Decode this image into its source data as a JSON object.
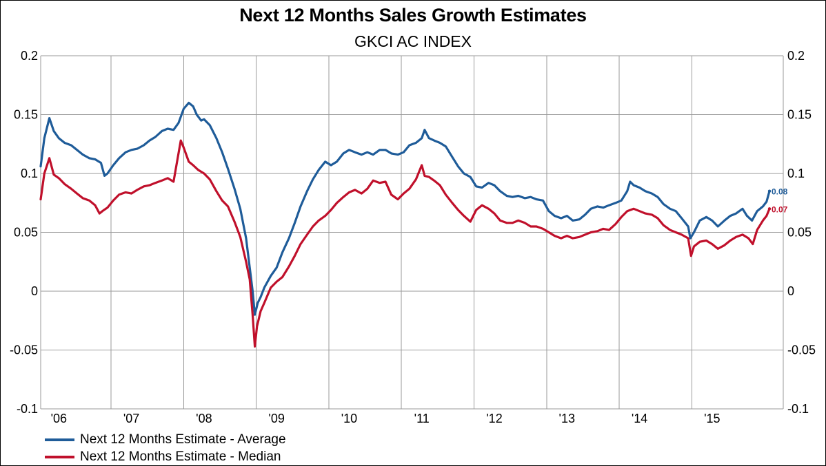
{
  "chart_data": {
    "type": "line",
    "title": "Next 12 Months Sales Growth Estimates",
    "subtitle": "GKCI AC INDEX",
    "xlabel": "",
    "ylabel": "",
    "ylim": [
      -0.1,
      0.2
    ],
    "y_ticks": [
      {
        "value": 0.2,
        "label": "0.2"
      },
      {
        "value": 0.15,
        "label": "0.15"
      },
      {
        "value": 0.1,
        "label": "0.1"
      },
      {
        "value": 0.05,
        "label": "0.05"
      },
      {
        "value": 0,
        "label": "0"
      },
      {
        "value": -0.05,
        "label": "-0.05"
      },
      {
        "value": -0.1,
        "label": "-0.1"
      }
    ],
    "xlim": [
      2005.75,
      2015.98
    ],
    "x_ticks": [
      {
        "value": 2006,
        "label": "'06"
      },
      {
        "value": 2007,
        "label": "'07"
      },
      {
        "value": 2008,
        "label": "'08"
      },
      {
        "value": 2009,
        "label": "'09"
      },
      {
        "value": 2010,
        "label": "'10"
      },
      {
        "value": 2011,
        "label": "'11"
      },
      {
        "value": 2012,
        "label": "'12"
      },
      {
        "value": 2013,
        "label": "'13"
      },
      {
        "value": 2014,
        "label": "'14"
      },
      {
        "value": 2015,
        "label": "'15"
      }
    ],
    "grid": true,
    "dual_y_axis": true,
    "legend_position": "bottom-left",
    "series": [
      {
        "name": "Next 12 Months Estimate - Average",
        "color": "#1f5c99",
        "last_label": "0.08",
        "points": [
          [
            2005.75,
            0.106
          ],
          [
            2005.8,
            0.13
          ],
          [
            2005.87,
            0.147
          ],
          [
            2005.93,
            0.136
          ],
          [
            2006.0,
            0.13
          ],
          [
            2006.08,
            0.126
          ],
          [
            2006.17,
            0.124
          ],
          [
            2006.25,
            0.12
          ],
          [
            2006.33,
            0.116
          ],
          [
            2006.42,
            0.113
          ],
          [
            2006.5,
            0.112
          ],
          [
            2006.58,
            0.109
          ],
          [
            2006.63,
            0.098
          ],
          [
            2006.67,
            0.1
          ],
          [
            2006.75,
            0.107
          ],
          [
            2006.83,
            0.113
          ],
          [
            2006.92,
            0.118
          ],
          [
            2007.0,
            0.12
          ],
          [
            2007.08,
            0.121
          ],
          [
            2007.17,
            0.124
          ],
          [
            2007.25,
            0.128
          ],
          [
            2007.33,
            0.131
          ],
          [
            2007.42,
            0.136
          ],
          [
            2007.5,
            0.138
          ],
          [
            2007.58,
            0.137
          ],
          [
            2007.65,
            0.143
          ],
          [
            2007.72,
            0.155
          ],
          [
            2007.79,
            0.16
          ],
          [
            2007.85,
            0.157
          ],
          [
            2007.9,
            0.15
          ],
          [
            2007.96,
            0.145
          ],
          [
            2008.0,
            0.146
          ],
          [
            2008.08,
            0.141
          ],
          [
            2008.17,
            0.13
          ],
          [
            2008.25,
            0.118
          ],
          [
            2008.33,
            0.104
          ],
          [
            2008.42,
            0.087
          ],
          [
            2008.5,
            0.07
          ],
          [
            2008.58,
            0.045
          ],
          [
            2008.63,
            0.02
          ],
          [
            2008.67,
            0.0
          ],
          [
            2008.7,
            -0.02
          ],
          [
            2008.74,
            -0.01
          ],
          [
            2008.78,
            -0.005
          ],
          [
            2008.83,
            0.003
          ],
          [
            2008.92,
            0.013
          ],
          [
            2009.0,
            0.02
          ],
          [
            2009.08,
            0.033
          ],
          [
            2009.17,
            0.045
          ],
          [
            2009.25,
            0.058
          ],
          [
            2009.33,
            0.072
          ],
          [
            2009.42,
            0.085
          ],
          [
            2009.5,
            0.095
          ],
          [
            2009.58,
            0.103
          ],
          [
            2009.67,
            0.11
          ],
          [
            2009.75,
            0.107
          ],
          [
            2009.83,
            0.11
          ],
          [
            2009.92,
            0.117
          ],
          [
            2010.0,
            0.12
          ],
          [
            2010.08,
            0.118
          ],
          [
            2010.17,
            0.116
          ],
          [
            2010.25,
            0.118
          ],
          [
            2010.33,
            0.116
          ],
          [
            2010.42,
            0.12
          ],
          [
            2010.5,
            0.12
          ],
          [
            2010.58,
            0.117
          ],
          [
            2010.67,
            0.116
          ],
          [
            2010.75,
            0.118
          ],
          [
            2010.83,
            0.124
          ],
          [
            2010.92,
            0.126
          ],
          [
            2011.0,
            0.13
          ],
          [
            2011.04,
            0.137
          ],
          [
            2011.1,
            0.13
          ],
          [
            2011.17,
            0.128
          ],
          [
            2011.25,
            0.126
          ],
          [
            2011.33,
            0.123
          ],
          [
            2011.42,
            0.114
          ],
          [
            2011.5,
            0.106
          ],
          [
            2011.58,
            0.1
          ],
          [
            2011.67,
            0.097
          ],
          [
            2011.75,
            0.089
          ],
          [
            2011.83,
            0.088
          ],
          [
            2011.92,
            0.092
          ],
          [
            2012.0,
            0.09
          ],
          [
            2012.08,
            0.085
          ],
          [
            2012.17,
            0.081
          ],
          [
            2012.25,
            0.08
          ],
          [
            2012.33,
            0.081
          ],
          [
            2012.42,
            0.079
          ],
          [
            2012.5,
            0.08
          ],
          [
            2012.58,
            0.078
          ],
          [
            2012.67,
            0.077
          ],
          [
            2012.75,
            0.068
          ],
          [
            2012.83,
            0.064
          ],
          [
            2012.92,
            0.062
          ],
          [
            2013.0,
            0.064
          ],
          [
            2013.08,
            0.06
          ],
          [
            2013.17,
            0.061
          ],
          [
            2013.25,
            0.065
          ],
          [
            2013.33,
            0.07
          ],
          [
            2013.42,
            0.072
          ],
          [
            2013.5,
            0.071
          ],
          [
            2013.58,
            0.073
          ],
          [
            2013.67,
            0.075
          ],
          [
            2013.75,
            0.077
          ],
          [
            2013.83,
            0.085
          ],
          [
            2013.87,
            0.093
          ],
          [
            2013.92,
            0.09
          ],
          [
            2014.0,
            0.088
          ],
          [
            2014.08,
            0.085
          ],
          [
            2014.17,
            0.083
          ],
          [
            2014.25,
            0.08
          ],
          [
            2014.33,
            0.074
          ],
          [
            2014.42,
            0.07
          ],
          [
            2014.5,
            0.068
          ],
          [
            2014.58,
            0.062
          ],
          [
            2014.67,
            0.055
          ],
          [
            2014.7,
            0.045
          ],
          [
            2014.75,
            0.05
          ],
          [
            2014.83,
            0.06
          ],
          [
            2014.92,
            0.063
          ],
          [
            2015.0,
            0.06
          ],
          [
            2015.08,
            0.055
          ],
          [
            2015.17,
            0.06
          ],
          [
            2015.25,
            0.064
          ],
          [
            2015.33,
            0.066
          ],
          [
            2015.42,
            0.07
          ],
          [
            2015.48,
            0.064
          ],
          [
            2015.55,
            0.06
          ],
          [
            2015.62,
            0.068
          ],
          [
            2015.7,
            0.072
          ],
          [
            2015.75,
            0.076
          ],
          [
            2015.79,
            0.085
          ]
        ]
      },
      {
        "name": "Next 12 Months Estimate - Median",
        "color": "#c0102b",
        "last_label": "0.07",
        "points": [
          [
            2005.75,
            0.078
          ],
          [
            2005.8,
            0.1
          ],
          [
            2005.87,
            0.113
          ],
          [
            2005.93,
            0.099
          ],
          [
            2006.0,
            0.096
          ],
          [
            2006.08,
            0.091
          ],
          [
            2006.17,
            0.087
          ],
          [
            2006.25,
            0.083
          ],
          [
            2006.33,
            0.079
          ],
          [
            2006.42,
            0.077
          ],
          [
            2006.5,
            0.073
          ],
          [
            2006.56,
            0.066
          ],
          [
            2006.6,
            0.068
          ],
          [
            2006.67,
            0.071
          ],
          [
            2006.75,
            0.077
          ],
          [
            2006.83,
            0.082
          ],
          [
            2006.92,
            0.084
          ],
          [
            2007.0,
            0.083
          ],
          [
            2007.08,
            0.086
          ],
          [
            2007.17,
            0.089
          ],
          [
            2007.25,
            0.09
          ],
          [
            2007.33,
            0.092
          ],
          [
            2007.42,
            0.094
          ],
          [
            2007.5,
            0.096
          ],
          [
            2007.58,
            0.093
          ],
          [
            2007.62,
            0.107
          ],
          [
            2007.68,
            0.128
          ],
          [
            2007.72,
            0.122
          ],
          [
            2007.79,
            0.11
          ],
          [
            2007.85,
            0.107
          ],
          [
            2007.92,
            0.103
          ],
          [
            2008.0,
            0.1
          ],
          [
            2008.08,
            0.095
          ],
          [
            2008.17,
            0.085
          ],
          [
            2008.25,
            0.077
          ],
          [
            2008.33,
            0.072
          ],
          [
            2008.42,
            0.059
          ],
          [
            2008.5,
            0.046
          ],
          [
            2008.58,
            0.025
          ],
          [
            2008.63,
            0.01
          ],
          [
            2008.67,
            -0.02
          ],
          [
            2008.7,
            -0.047
          ],
          [
            2008.73,
            -0.03
          ],
          [
            2008.78,
            -0.017
          ],
          [
            2008.83,
            -0.01
          ],
          [
            2008.92,
            0.003
          ],
          [
            2009.0,
            0.008
          ],
          [
            2009.08,
            0.012
          ],
          [
            2009.17,
            0.021
          ],
          [
            2009.25,
            0.03
          ],
          [
            2009.33,
            0.04
          ],
          [
            2009.42,
            0.048
          ],
          [
            2009.5,
            0.055
          ],
          [
            2009.58,
            0.06
          ],
          [
            2009.67,
            0.064
          ],
          [
            2009.75,
            0.069
          ],
          [
            2009.83,
            0.075
          ],
          [
            2009.92,
            0.08
          ],
          [
            2010.0,
            0.084
          ],
          [
            2010.08,
            0.086
          ],
          [
            2010.17,
            0.083
          ],
          [
            2010.25,
            0.087
          ],
          [
            2010.33,
            0.094
          ],
          [
            2010.42,
            0.092
          ],
          [
            2010.5,
            0.093
          ],
          [
            2010.58,
            0.082
          ],
          [
            2010.67,
            0.078
          ],
          [
            2010.75,
            0.083
          ],
          [
            2010.83,
            0.087
          ],
          [
            2010.92,
            0.095
          ],
          [
            2011.0,
            0.107
          ],
          [
            2011.04,
            0.098
          ],
          [
            2011.1,
            0.097
          ],
          [
            2011.17,
            0.094
          ],
          [
            2011.25,
            0.09
          ],
          [
            2011.33,
            0.082
          ],
          [
            2011.42,
            0.075
          ],
          [
            2011.5,
            0.069
          ],
          [
            2011.58,
            0.064
          ],
          [
            2011.67,
            0.059
          ],
          [
            2011.75,
            0.069
          ],
          [
            2011.83,
            0.073
          ],
          [
            2011.92,
            0.07
          ],
          [
            2012.0,
            0.066
          ],
          [
            2012.08,
            0.06
          ],
          [
            2012.17,
            0.058
          ],
          [
            2012.25,
            0.058
          ],
          [
            2012.33,
            0.06
          ],
          [
            2012.42,
            0.058
          ],
          [
            2012.5,
            0.055
          ],
          [
            2012.58,
            0.055
          ],
          [
            2012.67,
            0.053
          ],
          [
            2012.75,
            0.05
          ],
          [
            2012.83,
            0.047
          ],
          [
            2012.92,
            0.045
          ],
          [
            2013.0,
            0.047
          ],
          [
            2013.08,
            0.045
          ],
          [
            2013.17,
            0.046
          ],
          [
            2013.25,
            0.048
          ],
          [
            2013.33,
            0.05
          ],
          [
            2013.42,
            0.051
          ],
          [
            2013.5,
            0.053
          ],
          [
            2013.58,
            0.052
          ],
          [
            2013.67,
            0.057
          ],
          [
            2013.75,
            0.063
          ],
          [
            2013.83,
            0.068
          ],
          [
            2013.92,
            0.07
          ],
          [
            2014.0,
            0.068
          ],
          [
            2014.08,
            0.066
          ],
          [
            2014.17,
            0.065
          ],
          [
            2014.25,
            0.062
          ],
          [
            2014.33,
            0.056
          ],
          [
            2014.42,
            0.052
          ],
          [
            2014.5,
            0.05
          ],
          [
            2014.58,
            0.048
          ],
          [
            2014.67,
            0.045
          ],
          [
            2014.71,
            0.03
          ],
          [
            2014.75,
            0.038
          ],
          [
            2014.83,
            0.042
          ],
          [
            2014.92,
            0.043
          ],
          [
            2015.0,
            0.04
          ],
          [
            2015.08,
            0.036
          ],
          [
            2015.17,
            0.039
          ],
          [
            2015.25,
            0.043
          ],
          [
            2015.33,
            0.046
          ],
          [
            2015.42,
            0.048
          ],
          [
            2015.5,
            0.045
          ],
          [
            2015.56,
            0.04
          ],
          [
            2015.62,
            0.052
          ],
          [
            2015.7,
            0.06
          ],
          [
            2015.75,
            0.064
          ],
          [
            2015.79,
            0.07
          ]
        ]
      }
    ]
  }
}
